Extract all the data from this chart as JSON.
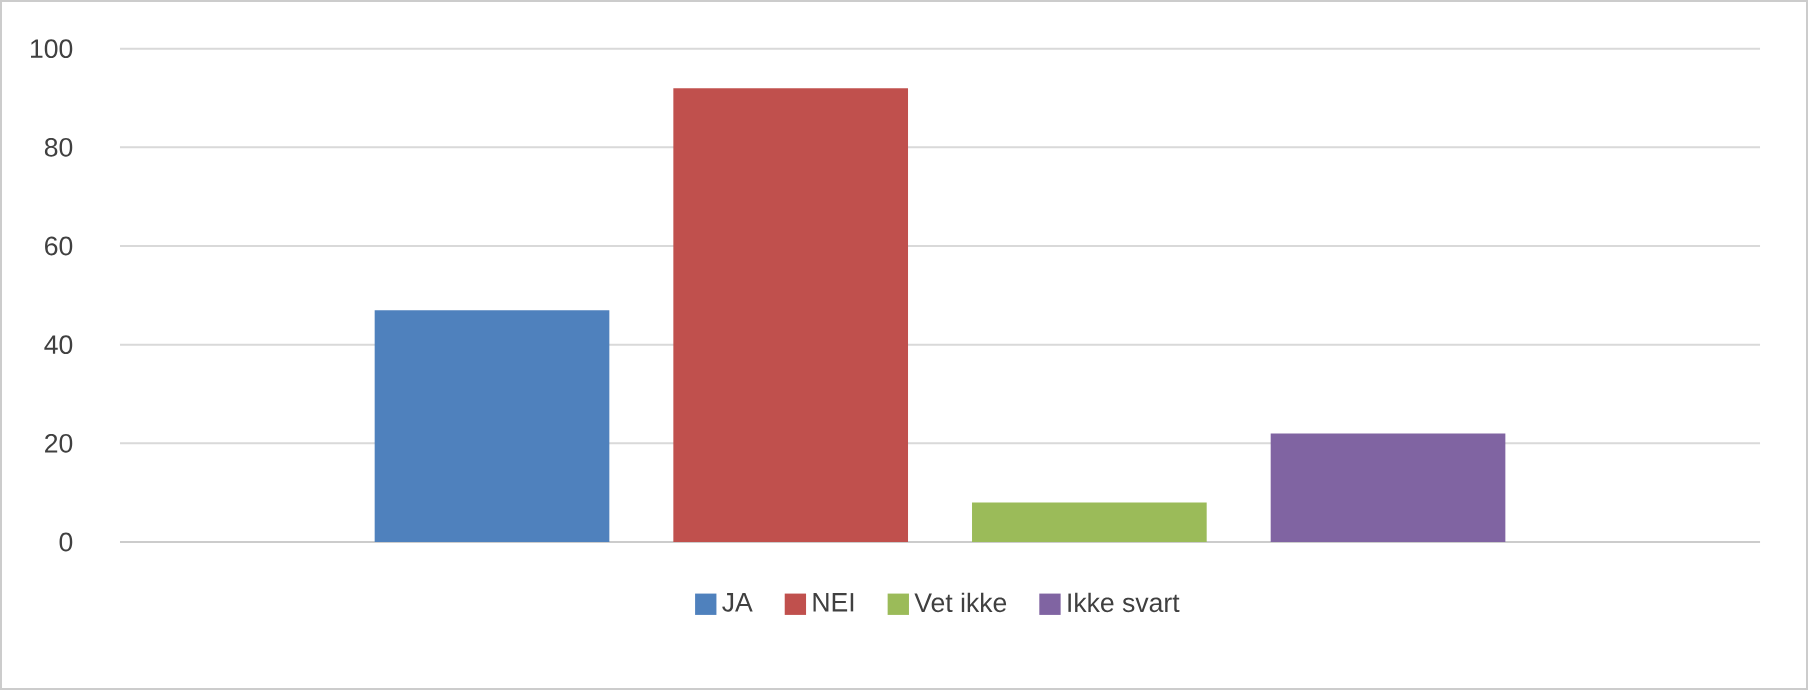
{
  "chart_data": {
    "type": "bar",
    "categories": [
      null
    ],
    "series": [
      {
        "name": "JA",
        "color": "#4f81bd",
        "values": [
          47
        ]
      },
      {
        "name": "NEI",
        "color": "#c0504d",
        "values": [
          92
        ]
      },
      {
        "name": "Vet ikke",
        "color": "#9bbb59",
        "values": [
          8
        ]
      },
      {
        "name": "Ikke svart",
        "color": "#8064a2",
        "values": [
          22
        ]
      }
    ],
    "ylim": [
      0,
      100
    ],
    "yticks": [
      0,
      20,
      40,
      60,
      80,
      100
    ],
    "grid": "y",
    "legend": "bottom"
  }
}
